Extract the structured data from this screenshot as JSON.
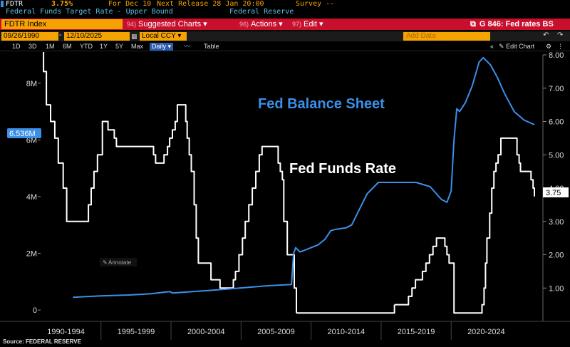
{
  "header": {
    "ticker": "FDTR",
    "value": "3.75%",
    "for_text": "For Dec 10",
    "next_release": "Next Release 28 Jan 20:00",
    "survey": "Survey --",
    "description": "Federal Funds Target Rate - Upper Bound",
    "source_label": "Federal Reserve"
  },
  "toolbar": {
    "security": "FDTR Index",
    "suggested_num": "94)",
    "suggested_label": "Suggested Charts",
    "actions_num": "96)",
    "actions_label": "Actions",
    "edit_num": "97)",
    "edit_label": "Edit",
    "chart_id": "G 846: Fed rates BS"
  },
  "range_bar": {
    "start_date": "09/26/1990",
    "end_date": "12/10/2025",
    "currency": "Local CCY",
    "add_data_placeholder": "Add Data",
    "edit_chart": "Edit Chart"
  },
  "timeframes": [
    "1D",
    "3D",
    "1M",
    "6M",
    "YTD",
    "1Y",
    "5Y",
    "Max"
  ],
  "periodicity": "Daily",
  "table_label": "Table",
  "annotate_label": "Annotate",
  "footer_source": "Source: FEDERAL RESERVE",
  "colors": {
    "balance_sheet": "#3b8fe8",
    "fed_funds": "#ffffff",
    "toolbar_red": "#c8102e",
    "header_orange": "#f5a300",
    "header_cyan": "#5bc0de"
  },
  "chart_data": {
    "type": "line",
    "annotations": [
      "Fed Balance Sheet",
      "Fed Funds Rate"
    ],
    "xlabel": "",
    "x_tick_labels": [
      "1990-1994",
      "1995-1999",
      "2000-2004",
      "2005-2009",
      "2010-2014",
      "2015-2019",
      "2020-2024"
    ],
    "x_range": [
      1990.74,
      2025.94
    ],
    "left_axis": {
      "ylim": [
        -0.4,
        9.0
      ],
      "ticks": [
        "0",
        "2M",
        "4M",
        "6M",
        "8M"
      ],
      "tick_values": [
        0,
        2,
        4,
        6,
        8
      ],
      "last_value_label": "6.536M",
      "last_value": 6.536
    },
    "right_axis": {
      "ylim": [
        0.0,
        8.0
      ],
      "ticks": [
        "1.00",
        "2.00",
        "3.00",
        "4.00",
        "5.00",
        "6.00",
        "7.00",
        "8.00"
      ],
      "tick_values": [
        1,
        2,
        3,
        4,
        5,
        6,
        7,
        8
      ],
      "last_value_label": "3.75",
      "last_value": 3.75
    },
    "series": [
      {
        "axis": "right",
        "step": true,
        "x": [
          1990.74,
          1990.9,
          1991.1,
          1991.4,
          1991.7,
          1991.95,
          1992.3,
          1992.55,
          1993.5,
          1994.1,
          1994.3,
          1994.5,
          1994.75,
          1995.1,
          1995.5,
          1995.95,
          1996.1,
          1998.75,
          1998.9,
          1999.5,
          1999.75,
          1999.9,
          2000.1,
          2000.3,
          2000.45,
          2001.05,
          2001.15,
          2001.3,
          2001.45,
          2001.65,
          2001.8,
          2001.95,
          2002.85,
          2003.5,
          2004.45,
          2004.6,
          2004.85,
          2005.1,
          2005.3,
          2005.55,
          2005.8,
          2006.05,
          2006.3,
          2006.5,
          2007.65,
          2007.8,
          2007.95,
          2008.05,
          2008.3,
          2008.8,
          2008.95
        ],
        "values": [
          8.25,
          7.5,
          6.5,
          6.0,
          5.5,
          4.75,
          4.0,
          3.0,
          3.0,
          3.5,
          4.0,
          4.5,
          5.0,
          6.0,
          5.75,
          5.5,
          5.25,
          5.0,
          4.75,
          5.0,
          5.25,
          5.5,
          5.75,
          6.0,
          6.5,
          6.0,
          5.5,
          5.0,
          4.5,
          3.5,
          2.5,
          1.75,
          1.25,
          1.0,
          1.25,
          1.5,
          2.0,
          2.5,
          3.0,
          3.5,
          4.0,
          4.5,
          5.0,
          5.25,
          4.75,
          4.5,
          4.25,
          3.0,
          2.0,
          1.0,
          0.25
        ]
      }
    ],
    "series_extra": [
      {
        "axis": "right",
        "step": true,
        "x": [
          2015.95,
          2016.95,
          2017.2,
          2017.45,
          2017.95,
          2018.2,
          2018.45,
          2018.7,
          2018.95,
          2019.55,
          2019.7,
          2019.85,
          2020.2,
          2022.2,
          2022.35,
          2022.45,
          2022.55,
          2022.75,
          2022.9,
          2023.05,
          2023.2,
          2023.35,
          2023.55,
          2024.7,
          2024.85,
          2024.95,
          2025.7,
          2025.85,
          2025.94
        ],
        "values": [
          0.5,
          0.75,
          1.0,
          1.25,
          1.5,
          1.75,
          2.0,
          2.25,
          2.5,
          2.25,
          2.0,
          1.75,
          0.25,
          0.5,
          1.0,
          1.75,
          2.5,
          3.25,
          4.0,
          4.5,
          4.75,
          5.0,
          5.5,
          5.0,
          4.75,
          4.5,
          4.25,
          4.0,
          3.75
        ]
      },
      {
        "axis": "left",
        "step": false,
        "x": [
          1993.0,
          1995.0,
          1997.0,
          1998.5,
          1999.9,
          2000.1,
          2001.0,
          2003.0,
          2005.0,
          2007.0,
          2008.6,
          2008.75,
          2008.9,
          2009.2,
          2009.5,
          2010.0,
          2010.5,
          2011.0,
          2011.4,
          2011.8,
          2012.5,
          2012.9,
          2013.5,
          2014.0,
          2014.8,
          2016.0,
          2017.5,
          2018.5,
          2019.3,
          2019.7,
          2020.0,
          2020.2,
          2020.4,
          2020.6,
          2021.0,
          2021.5,
          2022.0,
          2022.3,
          2022.8,
          2023.3,
          2023.8,
          2024.5,
          2025.2,
          2025.94
        ],
        "values": [
          0.45,
          0.5,
          0.53,
          0.57,
          0.65,
          0.6,
          0.63,
          0.7,
          0.78,
          0.86,
          0.9,
          2.0,
          2.2,
          2.05,
          2.1,
          2.2,
          2.3,
          2.5,
          2.8,
          2.85,
          2.9,
          3.0,
          3.6,
          4.1,
          4.5,
          4.5,
          4.5,
          4.35,
          3.9,
          3.8,
          4.2,
          6.0,
          7.1,
          7.0,
          7.3,
          7.9,
          8.75,
          8.9,
          8.65,
          8.2,
          7.65,
          7.0,
          6.7,
          6.536
        ]
      }
    ]
  }
}
